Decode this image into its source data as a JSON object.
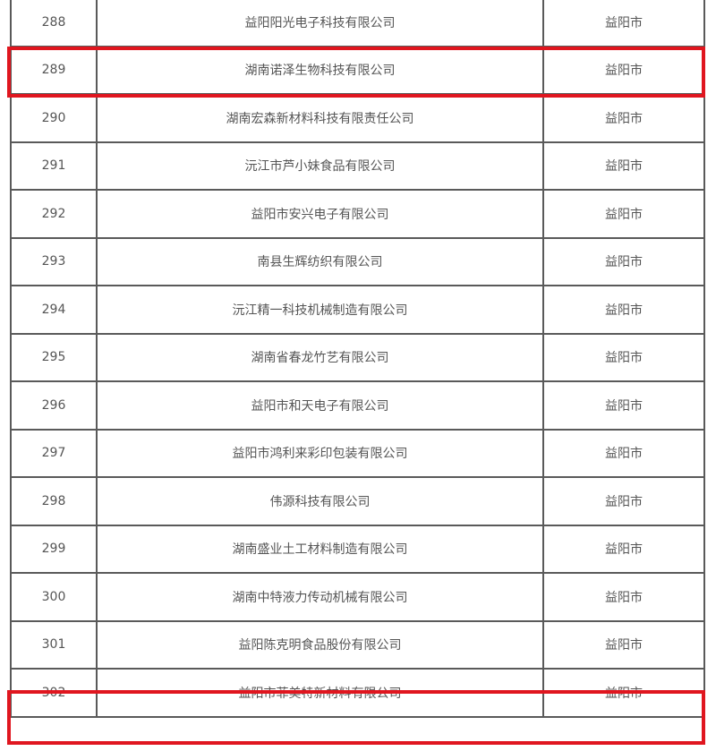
{
  "highlight_color": "#e0161f",
  "rows": [
    {
      "no": "288",
      "company": "益阳阳光电子科技有限公司",
      "city": "益阳市",
      "highlighted": false
    },
    {
      "no": "289",
      "company": "湖南诺泽生物科技有限公司",
      "city": "益阳市",
      "highlighted": true
    },
    {
      "no": "290",
      "company": "湖南宏森新材料科技有限责任公司",
      "city": "益阳市",
      "highlighted": false
    },
    {
      "no": "291",
      "company": "沅江市芦小妹食品有限公司",
      "city": "益阳市",
      "highlighted": false
    },
    {
      "no": "292",
      "company": "益阳市安兴电子有限公司",
      "city": "益阳市",
      "highlighted": false
    },
    {
      "no": "293",
      "company": "南县生辉纺织有限公司",
      "city": "益阳市",
      "highlighted": false
    },
    {
      "no": "294",
      "company": "沅江精一科技机械制造有限公司",
      "city": "益阳市",
      "highlighted": false
    },
    {
      "no": "295",
      "company": "湖南省春龙竹艺有限公司",
      "city": "益阳市",
      "highlighted": false
    },
    {
      "no": "296",
      "company": "益阳市和天电子有限公司",
      "city": "益阳市",
      "highlighted": false
    },
    {
      "no": "297",
      "company": "益阳市鸿利来彩印包装有限公司",
      "city": "益阳市",
      "highlighted": false
    },
    {
      "no": "298",
      "company": "伟源科技有限公司",
      "city": "益阳市",
      "highlighted": false
    },
    {
      "no": "299",
      "company": "湖南盛业土工材料制造有限公司",
      "city": "益阳市",
      "highlighted": false
    },
    {
      "no": "300",
      "company": "湖南中特液力传动机械有限公司",
      "city": "益阳市",
      "highlighted": false
    },
    {
      "no": "301",
      "company": "益阳陈克明食品股份有限公司",
      "city": "益阳市",
      "highlighted": false
    },
    {
      "no": "302",
      "company": "益阳市菲美特新材料有限公司",
      "city": "益阳市",
      "highlighted": true
    }
  ]
}
